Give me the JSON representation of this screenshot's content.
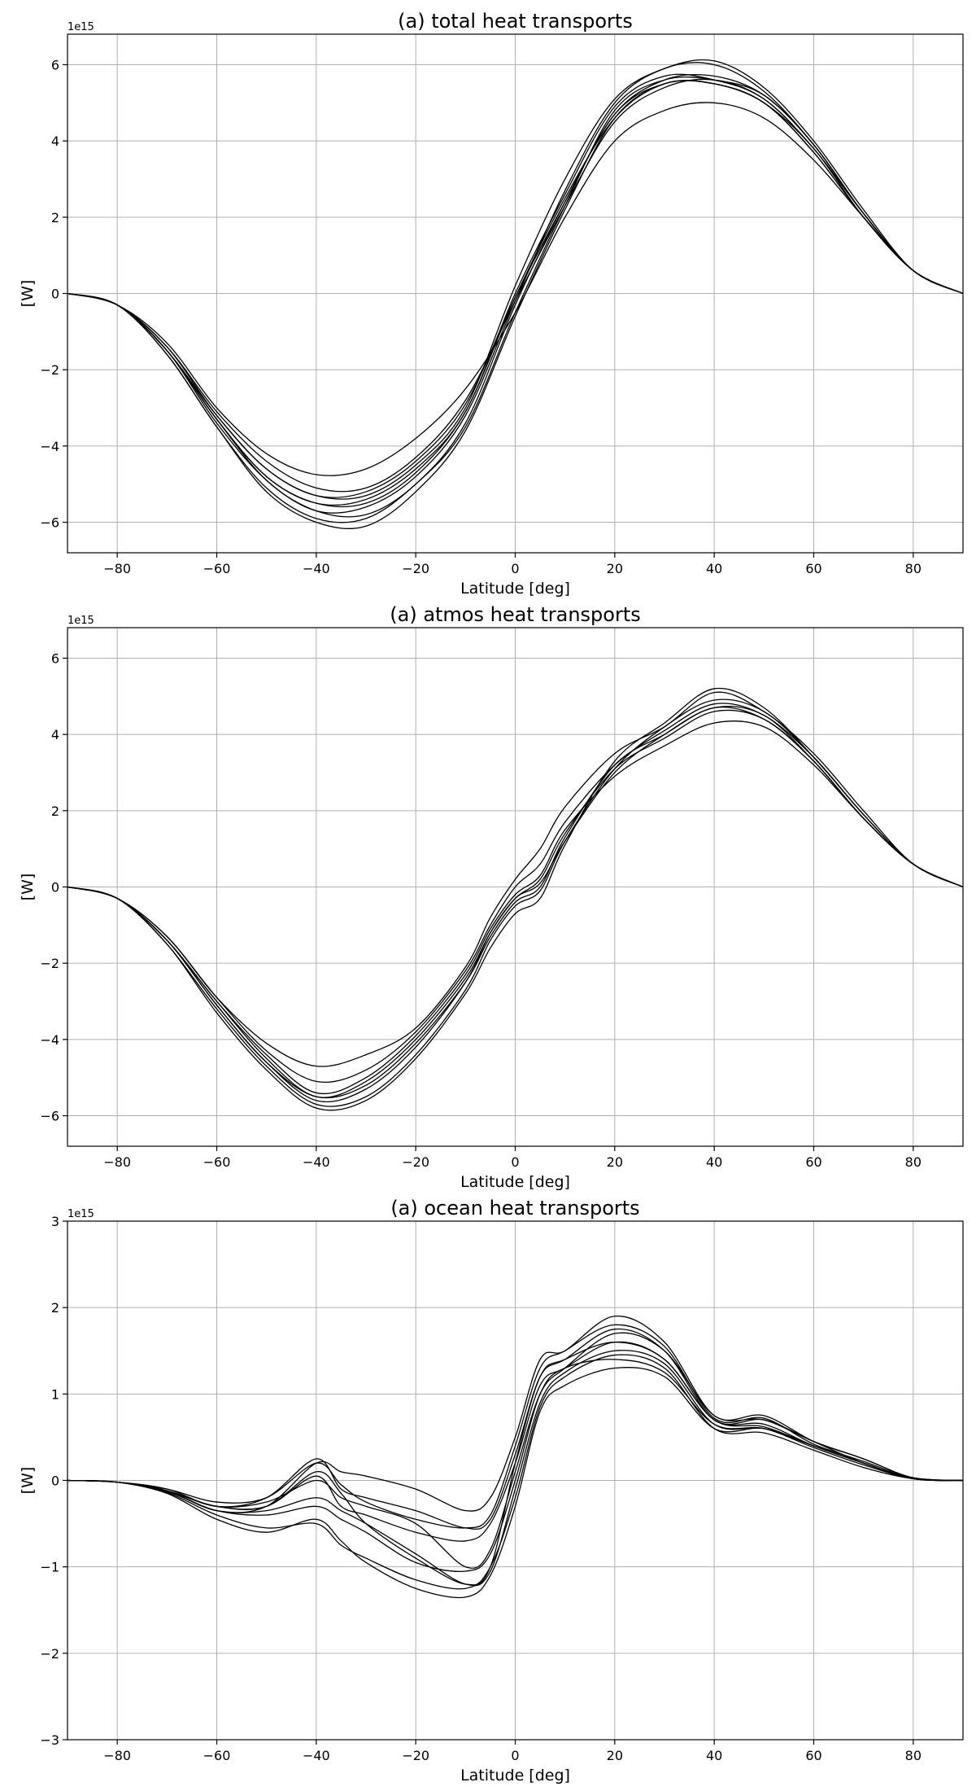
{
  "chart_data": [
    {
      "type": "line",
      "title": "(a) total heat transports",
      "xlabel": "Latitude [deg]",
      "ylabel": "[W]",
      "y_offset_label": "1e15",
      "xlim": [
        -90,
        90
      ],
      "ylim": [
        -6.8,
        6.8
      ],
      "xticks": [
        -80,
        -60,
        -40,
        -20,
        0,
        20,
        40,
        60,
        80
      ],
      "xtick_labels": [
        "−80",
        "−60",
        "−40",
        "−20",
        "0",
        "20",
        "40",
        "60",
        "80"
      ],
      "yticks": [
        -6,
        -4,
        -2,
        0,
        2,
        4,
        6
      ],
      "ytick_labels": [
        "−6",
        "−4",
        "−2",
        "0",
        "2",
        "4",
        "6"
      ],
      "grid": true,
      "x": [
        -90,
        -80,
        -70,
        -60,
        -50,
        -40,
        -30,
        -20,
        -10,
        0,
        10,
        20,
        30,
        40,
        50,
        60,
        70,
        80,
        90
      ],
      "series": [
        {
          "values": [
            0,
            -0.3,
            -1.3,
            -3.0,
            -4.2,
            -4.75,
            -4.6,
            -3.8,
            -2.5,
            -0.5,
            2.0,
            4.0,
            4.8,
            5.0,
            4.6,
            3.5,
            2.0,
            0.6,
            0
          ]
        },
        {
          "values": [
            0,
            -0.3,
            -1.4,
            -3.1,
            -4.4,
            -5.1,
            -5.1,
            -4.3,
            -2.8,
            -0.2,
            2.3,
            4.5,
            5.4,
            5.6,
            5.1,
            3.8,
            2.1,
            0.6,
            0
          ]
        },
        {
          "values": [
            0,
            -0.3,
            -1.5,
            -3.2,
            -4.6,
            -5.3,
            -5.2,
            -4.4,
            -2.9,
            -0.1,
            2.4,
            4.7,
            5.5,
            5.5,
            5.0,
            3.7,
            2.0,
            0.6,
            0
          ]
        },
        {
          "values": [
            0,
            -0.3,
            -1.5,
            -3.3,
            -4.8,
            -5.5,
            -5.4,
            -4.6,
            -3.1,
            0.0,
            2.6,
            4.9,
            5.7,
            5.6,
            5.1,
            3.8,
            2.1,
            0.6,
            0
          ]
        },
        {
          "values": [
            0,
            -0.3,
            -1.5,
            -3.4,
            -4.9,
            -5.7,
            -5.6,
            -4.8,
            -3.2,
            -0.2,
            2.7,
            5.0,
            5.9,
            6.0,
            5.3,
            3.9,
            2.1,
            0.6,
            0
          ]
        },
        {
          "values": [
            0,
            -0.3,
            -1.6,
            -3.5,
            -5.1,
            -5.9,
            -5.9,
            -5.0,
            -3.5,
            -0.5,
            2.3,
            4.8,
            5.6,
            5.6,
            5.2,
            3.9,
            2.1,
            0.6,
            0
          ]
        },
        {
          "values": [
            0,
            -0.3,
            -1.6,
            -3.5,
            -5.2,
            -6.0,
            -6.1,
            -5.2,
            -3.6,
            -0.6,
            2.2,
            4.6,
            5.5,
            5.5,
            5.0,
            3.8,
            2.0,
            0.6,
            0
          ]
        },
        {
          "values": [
            0,
            -0.3,
            -1.5,
            -3.3,
            -4.9,
            -5.7,
            -5.8,
            -5.0,
            -3.4,
            -0.3,
            2.4,
            4.7,
            5.6,
            5.7,
            5.2,
            3.9,
            2.1,
            0.6,
            0
          ]
        },
        {
          "values": [
            0,
            -0.3,
            -1.4,
            -3.2,
            -4.6,
            -5.3,
            -5.3,
            -4.5,
            -3.0,
            0.2,
            3.0,
            5.1,
            5.9,
            6.1,
            5.4,
            4.0,
            2.2,
            0.6,
            0
          ]
        },
        {
          "values": [
            0,
            -0.3,
            -1.5,
            -3.3,
            -4.8,
            -5.5,
            -5.5,
            -4.7,
            -3.1,
            -0.1,
            2.5,
            4.6,
            5.5,
            5.5,
            5.0,
            3.7,
            2.0,
            0.6,
            0
          ]
        }
      ]
    },
    {
      "type": "line",
      "title": "(a) atmos heat transports",
      "xlabel": "Latitude [deg]",
      "ylabel": "[W]",
      "y_offset_label": "1e15",
      "xlim": [
        -90,
        90
      ],
      "ylim": [
        -6.8,
        6.8
      ],
      "xticks": [
        -80,
        -60,
        -40,
        -20,
        0,
        20,
        40,
        60,
        80
      ],
      "xtick_labels": [
        "−80",
        "−60",
        "−40",
        "−20",
        "0",
        "20",
        "40",
        "60",
        "80"
      ],
      "yticks": [
        -6,
        -4,
        -2,
        0,
        2,
        4,
        6
      ],
      "ytick_labels": [
        "−6",
        "−4",
        "−2",
        "0",
        "2",
        "4",
        "6"
      ],
      "grid": true,
      "x": [
        -90,
        -80,
        -70,
        -60,
        -50,
        -40,
        -30,
        -20,
        -10,
        -5,
        0,
        5,
        10,
        20,
        30,
        40,
        50,
        60,
        70,
        80,
        90
      ],
      "series": [
        {
          "values": [
            0,
            -0.3,
            -1.3,
            -2.9,
            -4.1,
            -4.7,
            -4.4,
            -3.7,
            -2.1,
            -0.8,
            0.2,
            1.0,
            2.1,
            3.5,
            4.2,
            5.1,
            4.6,
            3.5,
            2.0,
            0.6,
            0
          ]
        },
        {
          "values": [
            0,
            -0.3,
            -1.3,
            -2.9,
            -4.3,
            -5.1,
            -4.8,
            -3.8,
            -2.2,
            -1.0,
            0.0,
            0.6,
            1.7,
            3.2,
            4.1,
            4.8,
            4.5,
            3.4,
            1.9,
            0.6,
            0
          ]
        },
        {
          "values": [
            0,
            -0.3,
            -1.4,
            -3.0,
            -4.5,
            -5.5,
            -5.1,
            -4.0,
            -2.4,
            -1.2,
            -0.3,
            0.2,
            1.4,
            3.1,
            3.9,
            4.6,
            4.4,
            3.3,
            1.8,
            0.6,
            0
          ]
        },
        {
          "values": [
            0,
            -0.3,
            -1.4,
            -3.1,
            -4.6,
            -5.6,
            -5.3,
            -4.2,
            -2.5,
            -1.2,
            -0.3,
            0.1,
            1.2,
            3.0,
            4.0,
            4.7,
            4.5,
            3.3,
            1.8,
            0.6,
            0
          ]
        },
        {
          "values": [
            0,
            -0.3,
            -1.5,
            -3.2,
            -4.7,
            -5.7,
            -5.5,
            -4.4,
            -2.7,
            -1.4,
            -0.5,
            -0.1,
            1.2,
            3.1,
            4.2,
            4.9,
            4.6,
            3.4,
            1.9,
            0.6,
            0
          ]
        },
        {
          "values": [
            0,
            -0.3,
            -1.5,
            -3.3,
            -4.8,
            -5.8,
            -5.6,
            -4.5,
            -2.8,
            -1.6,
            -0.7,
            -0.3,
            1.1,
            3.3,
            4.3,
            5.2,
            4.7,
            3.4,
            1.9,
            0.6,
            0
          ]
        },
        {
          "values": [
            0,
            -0.3,
            -1.4,
            -3.1,
            -4.6,
            -5.5,
            -5.2,
            -4.1,
            -2.5,
            -1.3,
            -0.4,
            0.0,
            1.3,
            3.2,
            4.0,
            4.7,
            4.4,
            3.3,
            1.8,
            0.6,
            0
          ]
        },
        {
          "values": [
            0,
            -0.3,
            -1.4,
            -3.0,
            -4.4,
            -5.4,
            -5.0,
            -3.9,
            -2.3,
            -1.1,
            -0.2,
            0.3,
            1.5,
            2.9,
            3.7,
            4.3,
            4.2,
            3.2,
            1.8,
            0.6,
            0
          ]
        }
      ]
    },
    {
      "type": "line",
      "title": "(a) ocean heat transports",
      "xlabel": "Latitude [deg]",
      "ylabel": "[W]",
      "y_offset_label": "1e15",
      "xlim": [
        -90,
        90
      ],
      "ylim": [
        -3,
        3
      ],
      "xticks": [
        -80,
        -60,
        -40,
        -20,
        0,
        20,
        40,
        60,
        80
      ],
      "xtick_labels": [
        "−80",
        "−60",
        "−40",
        "−20",
        "0",
        "20",
        "40",
        "60",
        "80"
      ],
      "yticks": [
        -3,
        -2,
        -1,
        0,
        1,
        2,
        3
      ],
      "ytick_labels": [
        "−3",
        "−2",
        "−1",
        "0",
        "1",
        "2",
        "3"
      ],
      "grid": true,
      "x": [
        -90,
        -80,
        -70,
        -60,
        -50,
        -40,
        -35,
        -30,
        -20,
        -10,
        -5,
        0,
        5,
        10,
        20,
        30,
        40,
        50,
        60,
        70,
        80,
        90
      ],
      "series": [
        {
          "values": [
            0,
            -0.02,
            -0.15,
            -0.45,
            -0.6,
            -0.45,
            -0.7,
            -0.95,
            -1.25,
            -1.35,
            -1.1,
            -0.3,
            0.8,
            1.1,
            1.3,
            1.2,
            0.6,
            0.6,
            0.4,
            0.2,
            0.02,
            0
          ]
        },
        {
          "values": [
            0,
            -0.02,
            -0.12,
            -0.35,
            -0.3,
            0.2,
            0.1,
            0.05,
            -0.1,
            -0.35,
            -0.2,
            0.5,
            1.4,
            1.5,
            1.9,
            1.6,
            0.75,
            0.75,
            0.45,
            0.25,
            0.03,
            0
          ]
        },
        {
          "values": [
            0,
            -0.02,
            -0.1,
            -0.3,
            -0.2,
            0.25,
            -0.1,
            -0.2,
            -0.35,
            -0.55,
            -0.45,
            0.3,
            1.2,
            1.4,
            1.75,
            1.5,
            0.7,
            0.7,
            0.45,
            0.2,
            0.03,
            0
          ]
        },
        {
          "values": [
            0,
            -0.02,
            -0.12,
            -0.3,
            -0.3,
            0.05,
            -0.3,
            -0.4,
            -0.6,
            -0.7,
            -0.5,
            0.2,
            1.1,
            1.3,
            1.6,
            1.4,
            0.7,
            0.65,
            0.4,
            0.2,
            0.02,
            0
          ]
        },
        {
          "values": [
            0,
            -0.02,
            -0.12,
            -0.3,
            -0.25,
            0.0,
            -0.2,
            -0.3,
            -0.5,
            -1.0,
            -0.8,
            0.1,
            1.0,
            1.3,
            1.7,
            1.5,
            0.75,
            0.7,
            0.45,
            0.25,
            0.03,
            0
          ]
        },
        {
          "values": [
            0,
            -0.02,
            -0.12,
            -0.35,
            -0.35,
            -0.2,
            -0.35,
            -0.5,
            -0.85,
            -1.2,
            -1.05,
            -0.1,
            0.9,
            1.25,
            1.5,
            1.35,
            0.65,
            0.6,
            0.4,
            0.2,
            0.02,
            0
          ]
        },
        {
          "values": [
            0,
            -0.02,
            -0.14,
            -0.4,
            -0.55,
            -0.5,
            -0.75,
            -0.9,
            -1.15,
            -1.25,
            -1.0,
            -0.2,
            0.85,
            1.2,
            1.45,
            1.3,
            0.6,
            0.55,
            0.35,
            0.15,
            0.02,
            0
          ]
        },
        {
          "values": [
            0,
            -0.02,
            -0.1,
            -0.25,
            -0.2,
            0.2,
            -0.05,
            -0.25,
            -0.45,
            -0.55,
            -0.4,
            0.4,
            1.3,
            1.5,
            1.8,
            1.55,
            0.72,
            0.72,
            0.42,
            0.22,
            0.03,
            0
          ]
        },
        {
          "values": [
            0,
            -0.02,
            -0.12,
            -0.3,
            -0.3,
            0.1,
            -0.15,
            -0.5,
            -0.9,
            -1.2,
            -1.0,
            0.2,
            1.2,
            1.4,
            1.6,
            1.4,
            0.7,
            0.62,
            0.4,
            0.2,
            0.02,
            0
          ]
        },
        {
          "values": [
            0,
            -0.02,
            -0.13,
            -0.35,
            -0.4,
            -0.3,
            -0.45,
            -0.6,
            -0.95,
            -1.05,
            -0.85,
            0.0,
            1.0,
            1.3,
            1.4,
            1.25,
            0.65,
            0.6,
            0.38,
            0.18,
            0.02,
            0
          ]
        }
      ]
    }
  ]
}
